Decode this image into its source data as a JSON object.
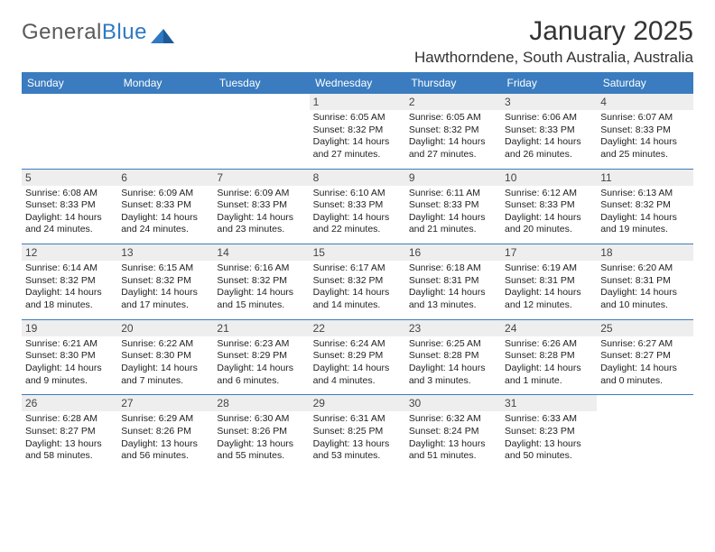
{
  "logo": {
    "text_general": "General",
    "text_blue": "Blue"
  },
  "title": "January 2025",
  "location": "Hawthorndene, South Australia, Australia",
  "colors": {
    "header_bg": "#3a7cbf",
    "header_text": "#ffffff",
    "daynum_bg": "#eeeeee",
    "divider": "#3a7cbf",
    "logo_gray": "#5a5a5a",
    "logo_blue": "#2f79c2",
    "body_text": "#222222",
    "background": "#ffffff"
  },
  "typography": {
    "title_fontsize": 30,
    "location_fontsize": 17,
    "dayhead_fontsize": 12,
    "daynum_fontsize": 12,
    "cell_fontsize": 10.5,
    "font_family": "Arial"
  },
  "dayHeaders": [
    "Sunday",
    "Monday",
    "Tuesday",
    "Wednesday",
    "Thursday",
    "Friday",
    "Saturday"
  ],
  "weeks": [
    [
      {
        "n": "",
        "sr": "",
        "ss": "",
        "dl": ""
      },
      {
        "n": "",
        "sr": "",
        "ss": "",
        "dl": ""
      },
      {
        "n": "",
        "sr": "",
        "ss": "",
        "dl": ""
      },
      {
        "n": "1",
        "sr": "6:05 AM",
        "ss": "8:32 PM",
        "dl": "14 hours and 27 minutes."
      },
      {
        "n": "2",
        "sr": "6:05 AM",
        "ss": "8:32 PM",
        "dl": "14 hours and 27 minutes."
      },
      {
        "n": "3",
        "sr": "6:06 AM",
        "ss": "8:33 PM",
        "dl": "14 hours and 26 minutes."
      },
      {
        "n": "4",
        "sr": "6:07 AM",
        "ss": "8:33 PM",
        "dl": "14 hours and 25 minutes."
      }
    ],
    [
      {
        "n": "5",
        "sr": "6:08 AM",
        "ss": "8:33 PM",
        "dl": "14 hours and 24 minutes."
      },
      {
        "n": "6",
        "sr": "6:09 AM",
        "ss": "8:33 PM",
        "dl": "14 hours and 24 minutes."
      },
      {
        "n": "7",
        "sr": "6:09 AM",
        "ss": "8:33 PM",
        "dl": "14 hours and 23 minutes."
      },
      {
        "n": "8",
        "sr": "6:10 AM",
        "ss": "8:33 PM",
        "dl": "14 hours and 22 minutes."
      },
      {
        "n": "9",
        "sr": "6:11 AM",
        "ss": "8:33 PM",
        "dl": "14 hours and 21 minutes."
      },
      {
        "n": "10",
        "sr": "6:12 AM",
        "ss": "8:33 PM",
        "dl": "14 hours and 20 minutes."
      },
      {
        "n": "11",
        "sr": "6:13 AM",
        "ss": "8:32 PM",
        "dl": "14 hours and 19 minutes."
      }
    ],
    [
      {
        "n": "12",
        "sr": "6:14 AM",
        "ss": "8:32 PM",
        "dl": "14 hours and 18 minutes."
      },
      {
        "n": "13",
        "sr": "6:15 AM",
        "ss": "8:32 PM",
        "dl": "14 hours and 17 minutes."
      },
      {
        "n": "14",
        "sr": "6:16 AM",
        "ss": "8:32 PM",
        "dl": "14 hours and 15 minutes."
      },
      {
        "n": "15",
        "sr": "6:17 AM",
        "ss": "8:32 PM",
        "dl": "14 hours and 14 minutes."
      },
      {
        "n": "16",
        "sr": "6:18 AM",
        "ss": "8:31 PM",
        "dl": "14 hours and 13 minutes."
      },
      {
        "n": "17",
        "sr": "6:19 AM",
        "ss": "8:31 PM",
        "dl": "14 hours and 12 minutes."
      },
      {
        "n": "18",
        "sr": "6:20 AM",
        "ss": "8:31 PM",
        "dl": "14 hours and 10 minutes."
      }
    ],
    [
      {
        "n": "19",
        "sr": "6:21 AM",
        "ss": "8:30 PM",
        "dl": "14 hours and 9 minutes."
      },
      {
        "n": "20",
        "sr": "6:22 AM",
        "ss": "8:30 PM",
        "dl": "14 hours and 7 minutes."
      },
      {
        "n": "21",
        "sr": "6:23 AM",
        "ss": "8:29 PM",
        "dl": "14 hours and 6 minutes."
      },
      {
        "n": "22",
        "sr": "6:24 AM",
        "ss": "8:29 PM",
        "dl": "14 hours and 4 minutes."
      },
      {
        "n": "23",
        "sr": "6:25 AM",
        "ss": "8:28 PM",
        "dl": "14 hours and 3 minutes."
      },
      {
        "n": "24",
        "sr": "6:26 AM",
        "ss": "8:28 PM",
        "dl": "14 hours and 1 minute."
      },
      {
        "n": "25",
        "sr": "6:27 AM",
        "ss": "8:27 PM",
        "dl": "14 hours and 0 minutes."
      }
    ],
    [
      {
        "n": "26",
        "sr": "6:28 AM",
        "ss": "8:27 PM",
        "dl": "13 hours and 58 minutes."
      },
      {
        "n": "27",
        "sr": "6:29 AM",
        "ss": "8:26 PM",
        "dl": "13 hours and 56 minutes."
      },
      {
        "n": "28",
        "sr": "6:30 AM",
        "ss": "8:26 PM",
        "dl": "13 hours and 55 minutes."
      },
      {
        "n": "29",
        "sr": "6:31 AM",
        "ss": "8:25 PM",
        "dl": "13 hours and 53 minutes."
      },
      {
        "n": "30",
        "sr": "6:32 AM",
        "ss": "8:24 PM",
        "dl": "13 hours and 51 minutes."
      },
      {
        "n": "31",
        "sr": "6:33 AM",
        "ss": "8:23 PM",
        "dl": "13 hours and 50 minutes."
      },
      {
        "n": "",
        "sr": "",
        "ss": "",
        "dl": ""
      }
    ]
  ],
  "labels": {
    "sunrise": "Sunrise:",
    "sunset": "Sunset:",
    "daylight": "Daylight:"
  }
}
